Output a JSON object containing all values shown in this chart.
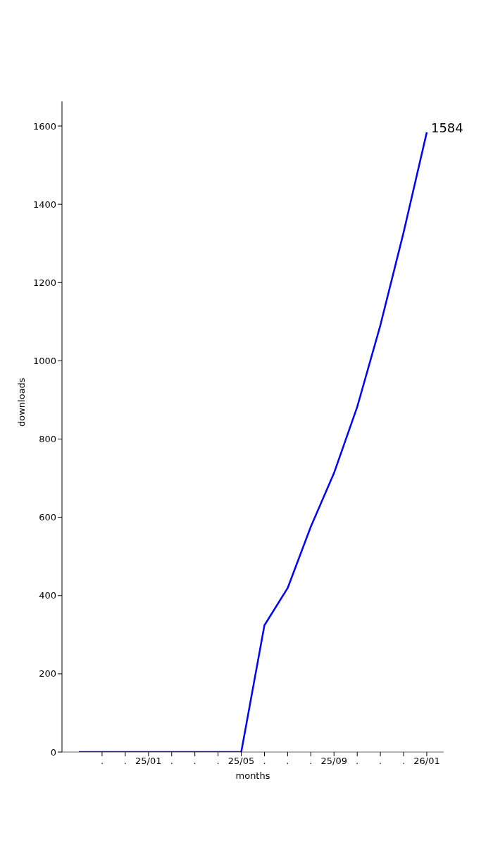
{
  "chart_data": {
    "type": "line",
    "xlabel": "months",
    "ylabel": "downloads",
    "categories": [
      null,
      ".",
      ".",
      "25/01",
      ".",
      ".",
      ".",
      "25/05",
      ".",
      ".",
      ".",
      "25/09",
      ".",
      ".",
      ".",
      "26/01"
    ],
    "series": [
      {
        "color": "#0000ff",
        "values": [
          0,
          0,
          0,
          0,
          0,
          0,
          0,
          0,
          324,
          419,
          576,
          713,
          882,
          1091,
          1328,
          1584
        ],
        "value_labels": [
          null,
          null,
          null,
          null,
          null,
          null,
          null,
          null,
          null,
          null,
          null,
          null,
          null,
          null,
          null,
          "1584"
        ]
      }
    ],
    "ylim": [
      0,
      1663
    ],
    "yticks": [
      0,
      200,
      400,
      600,
      800,
      1000,
      1200,
      1400,
      1600
    ],
    "grid": false,
    "legend": false,
    "marker": "none",
    "line_style": "solid"
  }
}
